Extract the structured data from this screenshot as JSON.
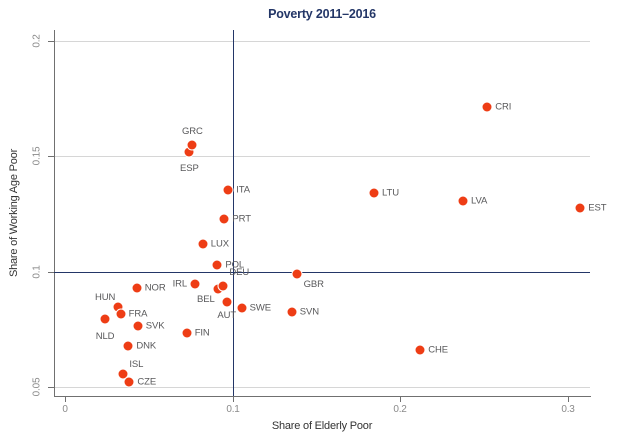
{
  "colors": {
    "navy": "#233667",
    "marker": "#ee3d15",
    "grid": "#d6d6d6",
    "axis_line": "#707070",
    "tick_label": "#8a8a8a",
    "point_label": "#58585a",
    "axis_title": "#333333"
  },
  "chart_data": {
    "type": "scatter",
    "title": "Poverty 2011–2016",
    "xlabel": "Share of Elderly Poor",
    "ylabel": "Share of Working Age Poor",
    "xlim": [
      -0.0066,
      0.3133
    ],
    "ylim": [
      0.0461,
      0.2048
    ],
    "grid": "horizontal gridlines at y ticks",
    "legend": "none",
    "marker_diameter_px": 9,
    "x_ticks": [
      {
        "value": 0,
        "label": "0"
      },
      {
        "value": 0.1,
        "label": "0.1"
      },
      {
        "value": 0.2,
        "label": "0.2"
      },
      {
        "value": 0.3,
        "label": "0.3"
      }
    ],
    "y_ticks": [
      {
        "value": 0.05,
        "label": "0.05"
      },
      {
        "value": 0.1,
        "label": "0.1"
      },
      {
        "value": 0.15,
        "label": "0.15"
      },
      {
        "value": 0.2,
        "label": "0.2"
      }
    ],
    "reference_lines": [
      {
        "axis": "x",
        "value": 0.1
      },
      {
        "axis": "y",
        "value": 0.1
      }
    ],
    "points": [
      {
        "label": "NLD",
        "x": 0.0239,
        "y": 0.0796,
        "side": "below",
        "dy": 4
      },
      {
        "label": "HUN",
        "x": 0.0318,
        "y": 0.0847,
        "side": "above-left"
      },
      {
        "label": "FRA",
        "x": 0.0332,
        "y": 0.0817,
        "side": "right"
      },
      {
        "label": "ISL",
        "x": 0.0348,
        "y": 0.0555,
        "side": "above-right"
      },
      {
        "label": "DNK",
        "x": 0.0378,
        "y": 0.0679,
        "side": "right"
      },
      {
        "label": "CZE",
        "x": 0.0384,
        "y": 0.052,
        "side": "right"
      },
      {
        "label": "NOR",
        "x": 0.0428,
        "y": 0.0928,
        "side": "right"
      },
      {
        "label": "SVK",
        "x": 0.0434,
        "y": 0.0765,
        "side": "right"
      },
      {
        "label": "FIN",
        "x": 0.0726,
        "y": 0.0733,
        "side": "right"
      },
      {
        "label": "ESP",
        "x": 0.0742,
        "y": 0.1517,
        "side": "below",
        "dy": 3
      },
      {
        "label": "GRC",
        "x": 0.076,
        "y": 0.1549,
        "side": "above"
      },
      {
        "label": "IRL",
        "x": 0.0776,
        "y": 0.0945,
        "side": "left"
      },
      {
        "label": "LUX",
        "x": 0.0822,
        "y": 0.1118,
        "side": "right"
      },
      {
        "label": "POL",
        "x": 0.0909,
        "y": 0.1029,
        "side": "right"
      },
      {
        "label": "BEL",
        "x": 0.0911,
        "y": 0.0924,
        "side": "below-left"
      },
      {
        "label": "DEU",
        "x": 0.0945,
        "y": 0.0939,
        "side": "above-right",
        "dy": -4
      },
      {
        "label": "PRT",
        "x": 0.0951,
        "y": 0.1228,
        "side": "right"
      },
      {
        "label": "AUT",
        "x": 0.0965,
        "y": 0.087,
        "side": "below"
      },
      {
        "label": "ITA",
        "x": 0.0974,
        "y": 0.1353,
        "side": "right"
      },
      {
        "label": "SWE",
        "x": 0.1054,
        "y": 0.0843,
        "side": "right"
      },
      {
        "label": "SVN",
        "x": 0.1353,
        "y": 0.0824,
        "side": "right"
      },
      {
        "label": "GBR",
        "x": 0.1382,
        "y": 0.099,
        "side": "below-right"
      },
      {
        "label": "LTU",
        "x": 0.1844,
        "y": 0.1342,
        "side": "right"
      },
      {
        "label": "CHE",
        "x": 0.212,
        "y": 0.0662,
        "side": "right"
      },
      {
        "label": "LVA",
        "x": 0.2375,
        "y": 0.1307,
        "side": "right"
      },
      {
        "label": "CRI",
        "x": 0.252,
        "y": 0.1715,
        "side": "right"
      },
      {
        "label": "EST",
        "x": 0.3075,
        "y": 0.1277,
        "side": "right"
      }
    ]
  }
}
